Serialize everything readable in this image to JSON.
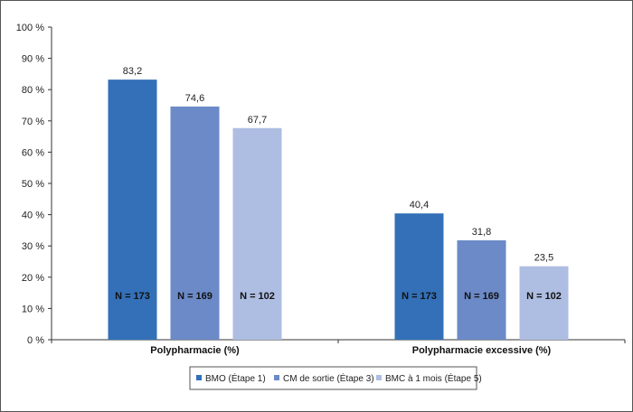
{
  "chart_data": {
    "type": "bar",
    "categories": [
      "Polypharmacie (%)",
      "Polypharmacie excessive (%)"
    ],
    "series": [
      {
        "name": "BMO (Étape 1)",
        "color": "#3370b8",
        "values": [
          83.2,
          40.4
        ],
        "value_labels": [
          "83,2",
          "40,4"
        ],
        "n_labels": [
          "N = 173",
          "N = 173"
        ]
      },
      {
        "name": "CM de sortie (Étape 3)",
        "color": "#6b8ac7",
        "values": [
          74.6,
          31.8
        ],
        "value_labels": [
          "74,6",
          "31,8"
        ],
        "n_labels": [
          "N = 169",
          "N = 169"
        ]
      },
      {
        "name": "BMC à 1 mois (Étape 5)",
        "color": "#aebde2",
        "values": [
          67.7,
          23.5
        ],
        "value_labels": [
          "67,7",
          "23,5"
        ],
        "n_labels": [
          "N = 102",
          "N = 102"
        ]
      }
    ],
    "ylim": [
      0,
      100
    ],
    "yticks": [
      0,
      10,
      20,
      30,
      40,
      50,
      60,
      70,
      80,
      90,
      100
    ],
    "ytick_labels": [
      "0 %",
      "10 %",
      "20 %",
      "30 %",
      "40 %",
      "50 %",
      "60 %",
      "70 %",
      "80 %",
      "90 %",
      "100 %"
    ],
    "grid": false,
    "legend_position": "bottom-center"
  }
}
